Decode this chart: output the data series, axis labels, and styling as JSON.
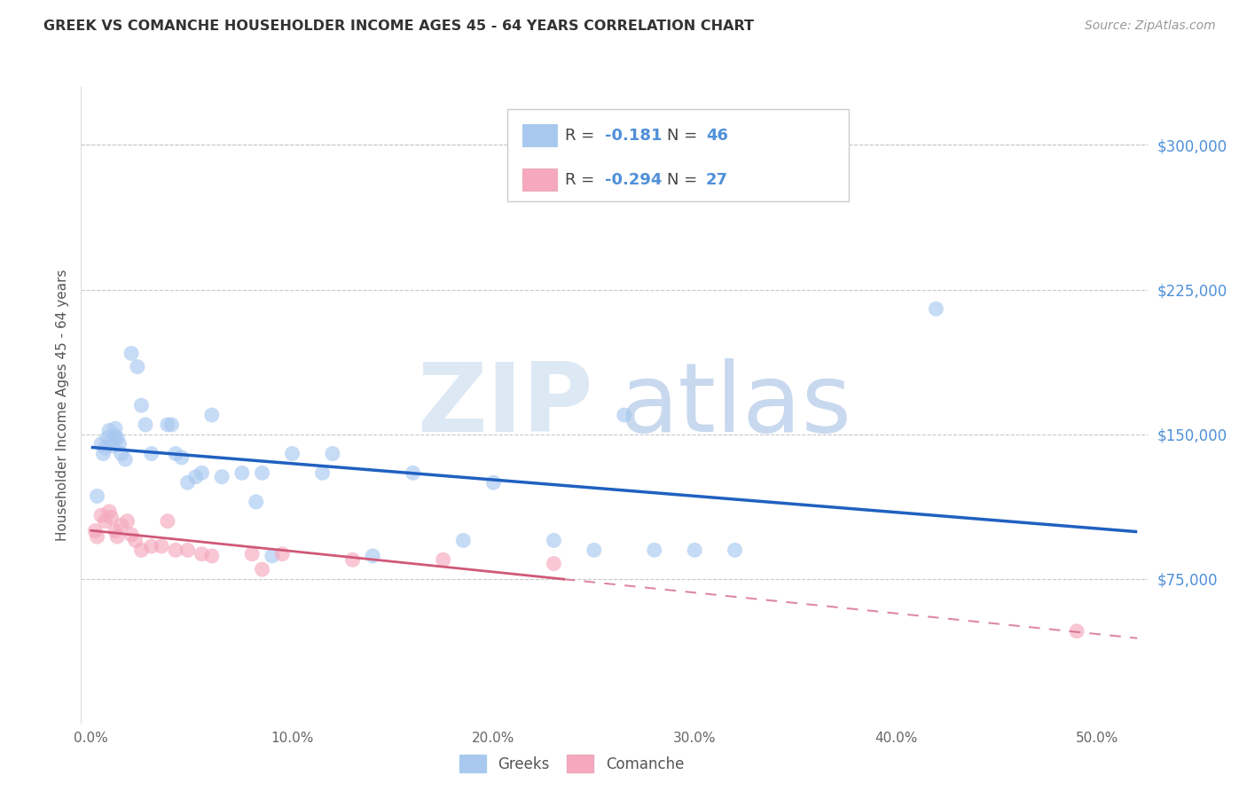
{
  "title": "GREEK VS COMANCHE HOUSEHOLDER INCOME AGES 45 - 64 YEARS CORRELATION CHART",
  "source": "Source: ZipAtlas.com",
  "ylabel": "Householder Income Ages 45 - 64 years",
  "ytick_labels": [
    "$75,000",
    "$150,000",
    "$225,000",
    "$300,000"
  ],
  "ytick_vals": [
    75000,
    150000,
    225000,
    300000
  ],
  "xtick_labels": [
    "0.0%",
    "10.0%",
    "20.0%",
    "30.0%",
    "40.0%",
    "50.0%"
  ],
  "xtick_vals": [
    0.0,
    0.1,
    0.2,
    0.3,
    0.4,
    0.5
  ],
  "ylim": [
    0,
    330000
  ],
  "xlim": [
    -0.005,
    0.525
  ],
  "legend_label1": "Greeks",
  "legend_label2": "Comanche",
  "r1_val": "-0.181",
  "n1_val": "46",
  "r2_val": "-0.294",
  "n2_val": "27",
  "color_blue": "#A8C8F0",
  "color_pink": "#F5A8BE",
  "color_line_blue": "#2060C0",
  "color_line_pink": "#D05878",
  "color_ytick": "#5090D8",
  "background": "#FFFFFF",
  "greeks_x": [
    0.003,
    0.005,
    0.006,
    0.007,
    0.008,
    0.009,
    0.01,
    0.011,
    0.012,
    0.012,
    0.013,
    0.014,
    0.015,
    0.017,
    0.02,
    0.023,
    0.025,
    0.027,
    0.03,
    0.038,
    0.04,
    0.042,
    0.045,
    0.048,
    0.052,
    0.055,
    0.06,
    0.065,
    0.075,
    0.082,
    0.085,
    0.09,
    0.1,
    0.115,
    0.12,
    0.14,
    0.16,
    0.185,
    0.2,
    0.23,
    0.25,
    0.265,
    0.28,
    0.3,
    0.32,
    0.42
  ],
  "greeks_y": [
    118000,
    145000,
    140000,
    143000,
    148000,
    152000,
    146000,
    144000,
    149000,
    153000,
    148000,
    145000,
    140000,
    137000,
    192000,
    185000,
    165000,
    155000,
    140000,
    155000,
    155000,
    140000,
    138000,
    125000,
    128000,
    130000,
    160000,
    128000,
    130000,
    115000,
    130000,
    87000,
    140000,
    130000,
    140000,
    87000,
    130000,
    95000,
    125000,
    95000,
    90000,
    160000,
    90000,
    90000,
    90000,
    215000
  ],
  "comanche_x": [
    0.002,
    0.003,
    0.005,
    0.007,
    0.009,
    0.01,
    0.012,
    0.013,
    0.015,
    0.018,
    0.02,
    0.022,
    0.025,
    0.03,
    0.035,
    0.038,
    0.042,
    0.048,
    0.055,
    0.06,
    0.08,
    0.085,
    0.095,
    0.13,
    0.175,
    0.23,
    0.49
  ],
  "comanche_y": [
    100000,
    97000,
    108000,
    105000,
    110000,
    107000,
    100000,
    97000,
    103000,
    105000,
    98000,
    95000,
    90000,
    92000,
    92000,
    105000,
    90000,
    90000,
    88000,
    87000,
    88000,
    80000,
    88000,
    85000,
    85000,
    83000,
    48000
  ]
}
